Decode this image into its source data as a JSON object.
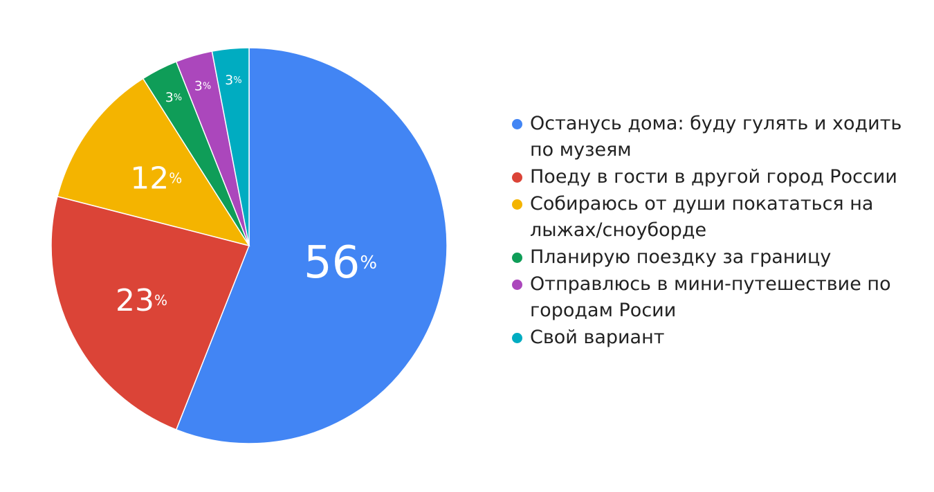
{
  "chart_data": {
    "type": "pie",
    "title": "",
    "legend_position": "right",
    "unit_suffix": "%",
    "slices": [
      {
        "label": "Останусь дома: буду гулять и ходить по музеям",
        "value": 56,
        "color": "#4285F4"
      },
      {
        "label": "Поеду в гости в другой город России",
        "value": 23,
        "color": "#DB4437"
      },
      {
        "label": "Собираюсь от души покататься на лыжах/сноуборде",
        "value": 12,
        "color": "#F4B400"
      },
      {
        "label": "Планирую поездку за границу",
        "value": 3,
        "color": "#0F9D58"
      },
      {
        "label": "Отправлюсь в мини-путешествие по городам Росии",
        "value": 3,
        "color": "#AB47BC"
      },
      {
        "label": "Свой вариант",
        "value": 3,
        "color": "#00ACC1"
      }
    ]
  }
}
